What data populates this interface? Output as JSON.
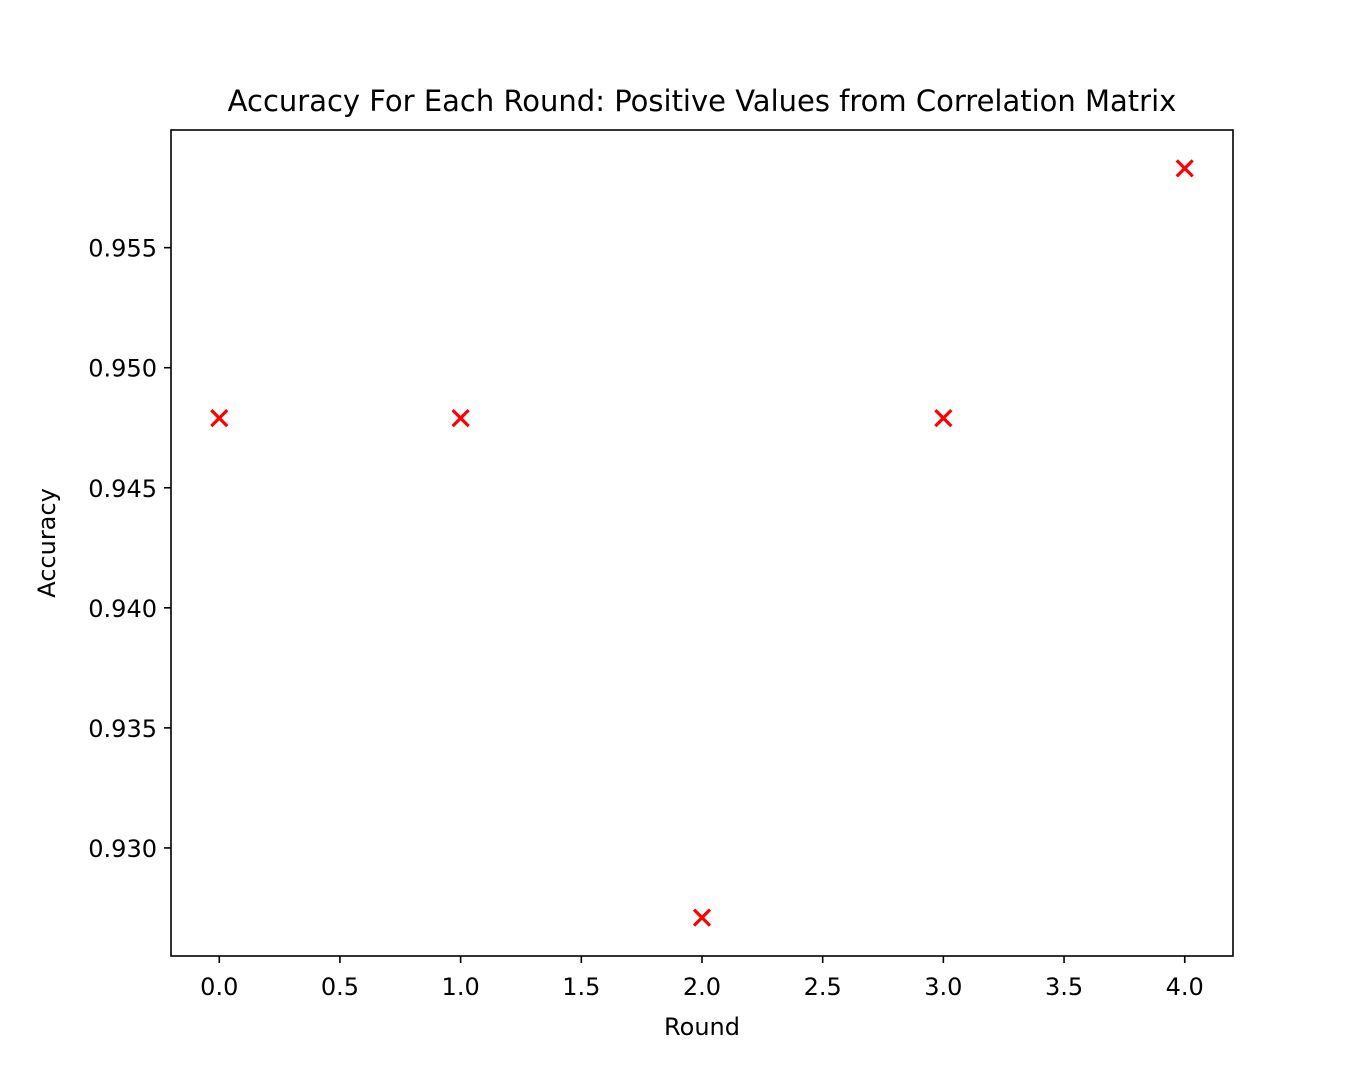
{
  "chart_data": {
    "type": "scatter",
    "title": "Accuracy For Each Round: Positive Values from Correlation Matrix",
    "xlabel": "Round",
    "ylabel": "Accuracy",
    "x": [
      0,
      1,
      2,
      3,
      4
    ],
    "y": [
      0.9479,
      0.9479,
      0.9271,
      0.9479,
      0.9583
    ],
    "xlim": [
      -0.2,
      4.2
    ],
    "ylim": [
      0.9255,
      0.9599
    ],
    "x_ticks": [
      0.0,
      0.5,
      1.0,
      1.5,
      2.0,
      2.5,
      3.0,
      3.5,
      4.0
    ],
    "x_tick_labels": [
      "0.0",
      "0.5",
      "1.0",
      "1.5",
      "2.0",
      "2.5",
      "3.0",
      "3.5",
      "4.0"
    ],
    "y_ticks": [
      0.93,
      0.935,
      0.94,
      0.945,
      0.95,
      0.955
    ],
    "y_tick_labels": [
      "0.930",
      "0.935",
      "0.940",
      "0.945",
      "0.950",
      "0.955"
    ],
    "marker": "x",
    "marker_color": "#ff0000",
    "grid": false,
    "legend": "none"
  }
}
